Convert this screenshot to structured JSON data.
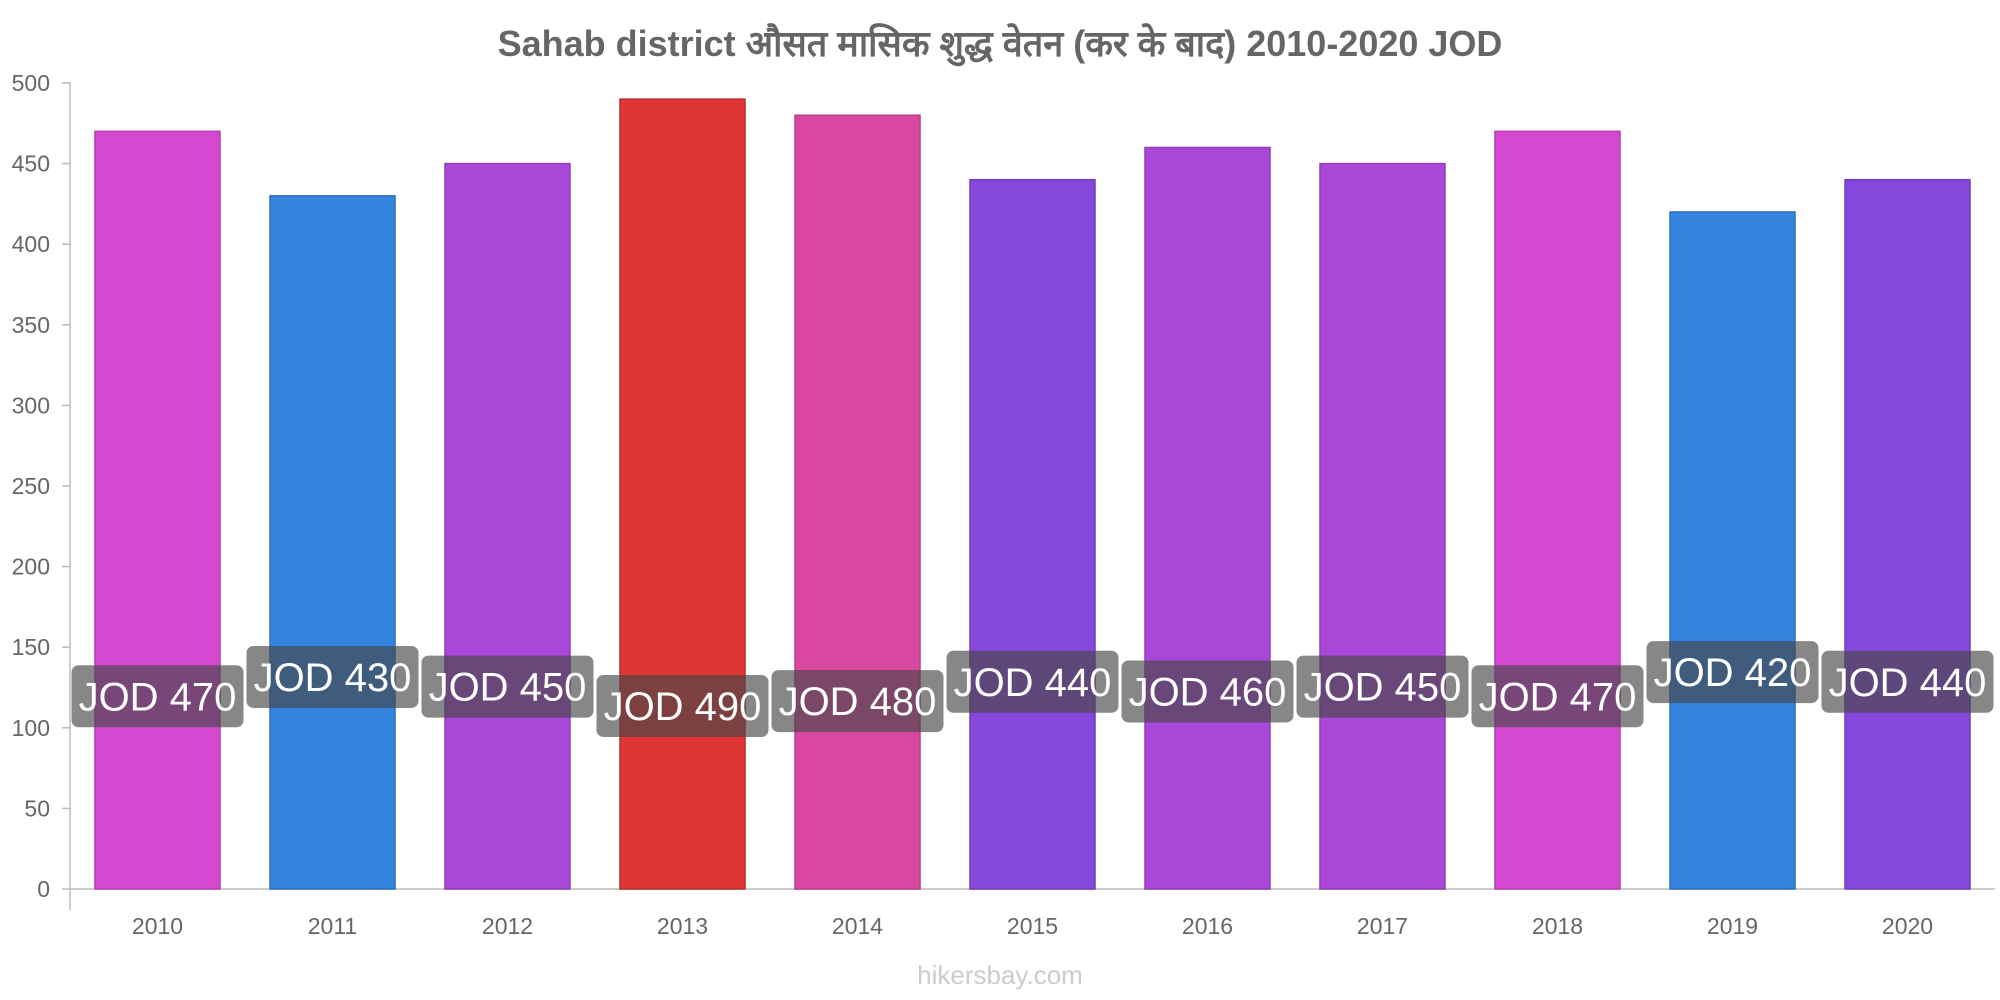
{
  "chart_data": {
    "type": "bar",
    "title": "Sahab district औसत मासिक शुद्ध वेतन (कर के बाद) 2010-2020 JOD",
    "xlabel": "",
    "ylabel": "",
    "categories": [
      "2010",
      "2011",
      "2012",
      "2013",
      "2014",
      "2015",
      "2016",
      "2017",
      "2018",
      "2019",
      "2020"
    ],
    "values": [
      470,
      430,
      450,
      490,
      480,
      440,
      460,
      450,
      470,
      420,
      440
    ],
    "data_labels": [
      "JOD 470",
      "JOD 430",
      "JOD 450",
      "JOD 490",
      "JOD 480",
      "JOD 440",
      "JOD 460",
      "JOD 450",
      "JOD 470",
      "JOD 420",
      "JOD 440"
    ],
    "bar_colors": [
      "#d548d2",
      "#3584e0",
      "#a948d8",
      "#e03535",
      "#d948a0",
      "#8648dc",
      "#a948d8",
      "#a948d8",
      "#d548d2",
      "#3584e0",
      "#8648dc"
    ],
    "ylim": [
      0,
      500
    ],
    "yticks": [
      0,
      50,
      100,
      150,
      200,
      250,
      300,
      350,
      400,
      450,
      500
    ],
    "grid": false,
    "legend": "none"
  },
  "watermark": "hikersbay.com"
}
